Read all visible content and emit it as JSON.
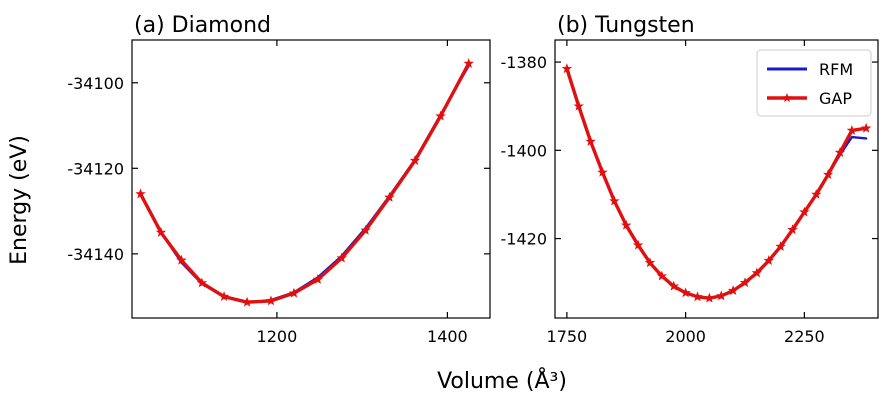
{
  "figure": {
    "ylabel": "Energy (eV)",
    "xlabel": "Volume (Å³)"
  },
  "chart_data": [
    {
      "type": "line",
      "title": "(a) Diamond",
      "xlabel": "Volume (Å³)",
      "ylabel": "Energy (eV)",
      "xlim": [
        1030,
        1450
      ],
      "ylim": [
        -34155,
        -34090
      ],
      "xticks": [
        1200,
        1400
      ],
      "yticks": [
        -34100,
        -34120,
        -34140
      ],
      "series": [
        {
          "name": "RFM",
          "color": "#1a1ac8",
          "x": [
            1040,
            1064,
            1088,
            1112,
            1138,
            1165,
            1193,
            1220,
            1248,
            1276,
            1304,
            1332,
            1362,
            1392,
            1425
          ],
          "y": [
            -34126,
            -34135,
            -34142,
            -34147,
            -34150,
            -34151.4,
            -34150.8,
            -34149,
            -34145.5,
            -34140.5,
            -34134,
            -34126.5,
            -34118,
            -34107.5,
            -34096
          ]
        },
        {
          "name": "GAP",
          "color": "#e01010",
          "marker": "star",
          "x": [
            1040,
            1064,
            1088,
            1112,
            1138,
            1165,
            1193,
            1220,
            1248,
            1276,
            1304,
            1332,
            1362,
            1392,
            1425
          ],
          "y": [
            -34126,
            -34135,
            -34141.5,
            -34146.8,
            -34150,
            -34151.3,
            -34151,
            -34149.2,
            -34146,
            -34141,
            -34134.5,
            -34126.8,
            -34118.2,
            -34107.8,
            -34095.5
          ]
        }
      ]
    },
    {
      "type": "line",
      "title": "(b) Tungsten",
      "legend_position": "top-right",
      "xlim": [
        1725,
        2405
      ],
      "ylim": [
        -1438,
        -1375
      ],
      "xticks": [
        1750,
        2000,
        2250
      ],
      "yticks": [
        -1380,
        -1400,
        -1420
      ],
      "series": [
        {
          "name": "RFM",
          "color": "#1a1ac8",
          "x": [
            1750,
            1775,
            1800,
            1825,
            1850,
            1875,
            1900,
            1925,
            1950,
            1975,
            2000,
            2025,
            2050,
            2075,
            2100,
            2125,
            2150,
            2175,
            2200,
            2225,
            2250,
            2275,
            2300,
            2325,
            2350,
            2380
          ],
          "y": [
            -1381.5,
            -1390,
            -1398,
            -1405,
            -1411.5,
            -1417,
            -1421.5,
            -1425.5,
            -1428.5,
            -1430.8,
            -1432.3,
            -1433.2,
            -1433.5,
            -1433,
            -1431.8,
            -1430,
            -1427.8,
            -1425,
            -1421.8,
            -1418,
            -1414,
            -1410,
            -1405.5,
            -1401,
            -1397,
            -1397.3
          ]
        },
        {
          "name": "GAP",
          "color": "#e01010",
          "marker": "star",
          "x": [
            1750,
            1775,
            1800,
            1825,
            1850,
            1875,
            1900,
            1925,
            1950,
            1975,
            2000,
            2025,
            2050,
            2075,
            2100,
            2125,
            2150,
            2175,
            2200,
            2225,
            2250,
            2275,
            2300,
            2325,
            2350,
            2380
          ],
          "y": [
            -1381.5,
            -1390,
            -1398,
            -1405,
            -1411.5,
            -1417,
            -1421.5,
            -1425.5,
            -1428.5,
            -1430.8,
            -1432.3,
            -1433.2,
            -1433.5,
            -1433,
            -1431.8,
            -1430,
            -1427.8,
            -1425,
            -1421.8,
            -1418,
            -1414,
            -1410,
            -1405.5,
            -1400.5,
            -1395.5,
            -1395
          ]
        }
      ]
    }
  ]
}
